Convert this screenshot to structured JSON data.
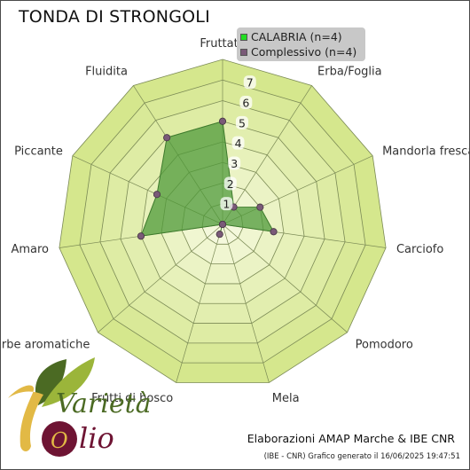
{
  "colors": {
    "ring_outer": "#d5e78d",
    "ring_inner": "#f4f8dc",
    "grid_line": "#7b8a55",
    "series_fill": "#4f9a3a",
    "series_stroke": "#3d7a2c",
    "marker": "#7a5a78",
    "legend_bg": "#c8c8c8",
    "calabria_swatch": "#22dd22",
    "complessivo_swatch": "#7a5a78",
    "logo_gold": "#e2b945",
    "logo_leaf_dark": "#4b6a23",
    "logo_leaf_light": "#9bb53a",
    "logo_olive": "#6e1433"
  },
  "chart_data": {
    "type": "radar",
    "title": "TONDA DI STRONGOLI",
    "axes": [
      "Fruttato",
      "Erba/Foglia",
      "Mandorla fresca",
      "Carciofo",
      "Pomodoro",
      "Mela",
      "Frutti di bosco",
      "Erbe aromatiche",
      "Amaro",
      "Piccante",
      "Fluidita"
    ],
    "rlim": [
      0,
      8
    ],
    "ticks": [
      "1",
      "2",
      "3",
      "4",
      "5",
      "6",
      "7"
    ],
    "series": [
      {
        "name": "CALABRIA  (n=4)",
        "values": [
          5,
          1,
          2,
          2.5,
          0,
          0,
          0.5,
          0,
          4,
          3.5,
          5
        ]
      },
      {
        "name": "Complessivo (n=4)",
        "values": [
          5,
          1,
          2,
          2.5,
          0,
          0,
          0.5,
          0,
          4,
          3.5,
          5
        ]
      }
    ],
    "legend_position": "top-right",
    "grid": true
  },
  "credit": "Elaborazioni AMAP Marche & IBE CNR",
  "footer": "(IBE - CNR) Grafico generato il 16/06/2025 19:47:51",
  "logo": {
    "word1": "arietà",
    "word2": "lio",
    "glyph_v": "V",
    "glyph_o": "O"
  }
}
